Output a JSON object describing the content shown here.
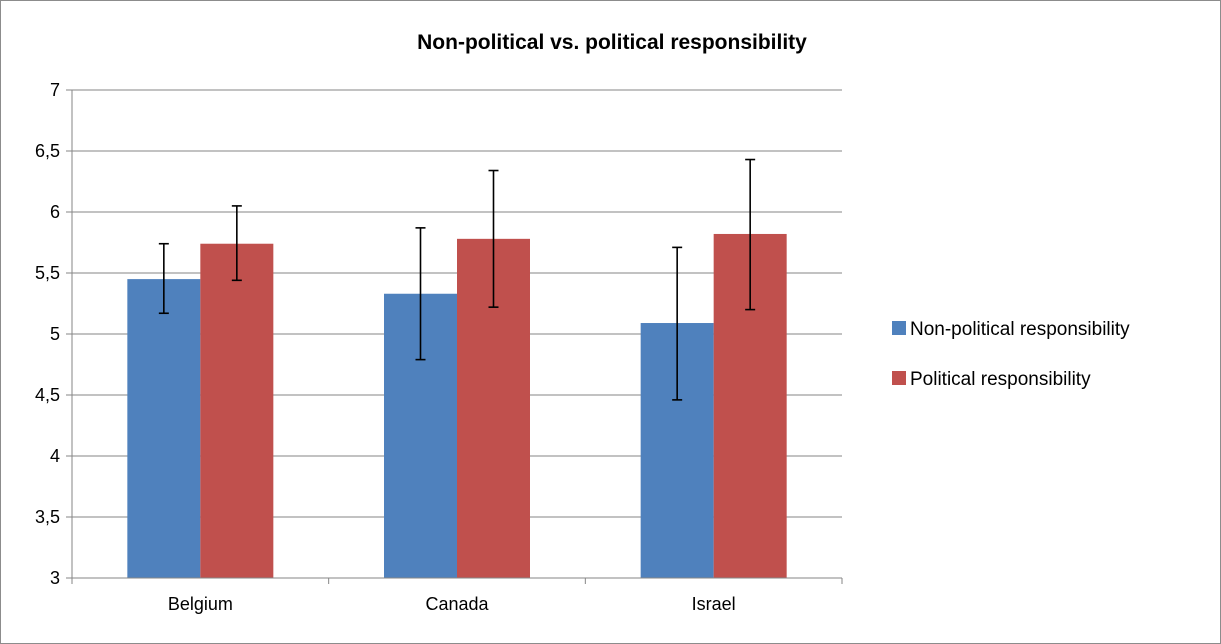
{
  "chart_data": {
    "type": "bar",
    "title": "Non-political vs. political responsibility",
    "categories": [
      "Belgium",
      "Canada",
      "Israel"
    ],
    "ylim": [
      3,
      7
    ],
    "ytick_step": 0.5,
    "ytick_labels": [
      "3",
      "3,5",
      "4",
      "4,5",
      "5",
      "5,5",
      "6",
      "6,5",
      "7"
    ],
    "grid": true,
    "legend_position": "right",
    "series": [
      {
        "name": "Non-political responsibility",
        "color": "#4f81bd",
        "values": [
          5.45,
          5.33,
          5.09
        ],
        "error_low": [
          5.17,
          4.79,
          4.46
        ],
        "error_high": [
          5.74,
          5.87,
          5.71
        ]
      },
      {
        "name": "Political responsibility",
        "color": "#c0504d",
        "values": [
          5.74,
          5.78,
          5.82
        ],
        "error_low": [
          5.44,
          5.22,
          5.2
        ],
        "error_high": [
          6.05,
          6.34,
          6.43
        ]
      }
    ]
  }
}
